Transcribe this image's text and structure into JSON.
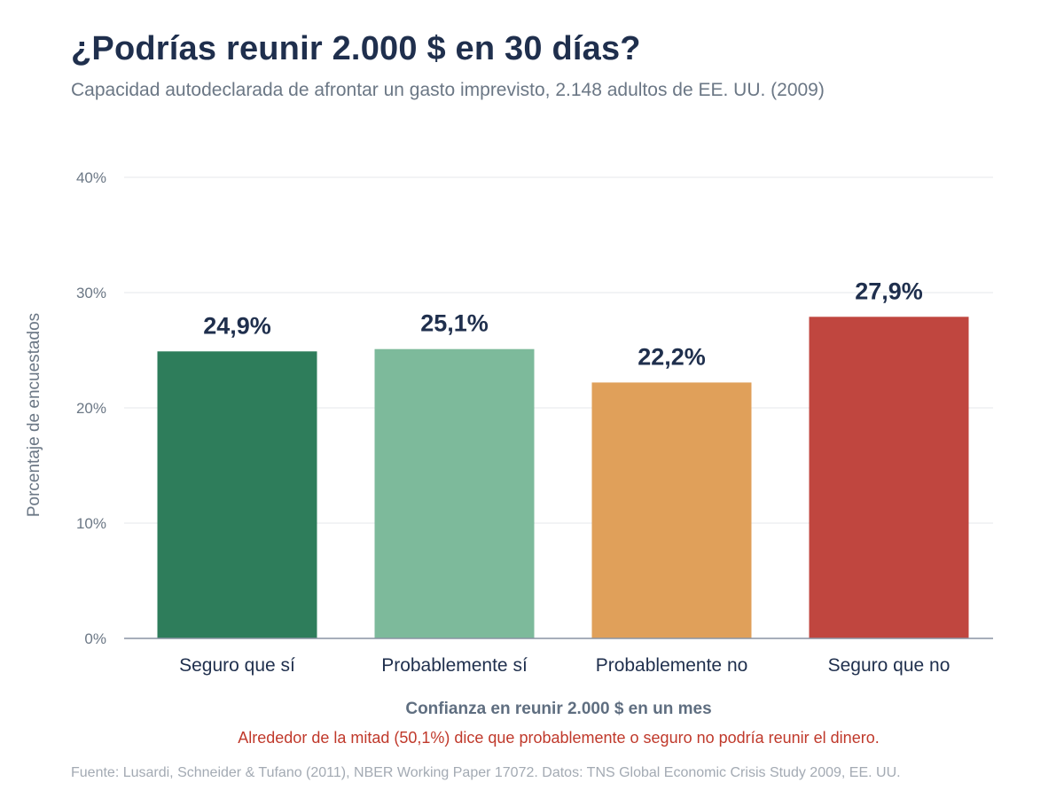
{
  "chart_data": {
    "type": "bar",
    "title": "¿Podrías reunir 2.000 $ en 30 días?",
    "subtitle": "Capacidad autodeclarada de afrontar un gasto imprevisto, 2.148 adultos de EE. UU. (2009)",
    "categories": [
      "Seguro que sí",
      "Probablemente sí",
      "Probablemente no",
      "Seguro que no"
    ],
    "values": [
      24.9,
      25.1,
      22.2,
      27.9
    ],
    "value_labels": [
      "24,9%",
      "25,1%",
      "22,2%",
      "27,9%"
    ],
    "colors": [
      "#2e7d5b",
      "#7dba9b",
      "#e0a05a",
      "#c0463f"
    ],
    "xlabel": "Confianza en reunir 2.000 $ en un mes",
    "ylabel": "Porcentaje de encuestados",
    "ylim": [
      0,
      40
    ],
    "yticks": [
      0,
      10,
      20,
      30,
      40
    ],
    "ytick_labels": [
      "0%",
      "10%",
      "20%",
      "30%",
      "40%"
    ],
    "grid": true,
    "annotation": "Alrededor de la mitad (50,1%) dice que probablemente o seguro no podría reunir el dinero.",
    "source": "Fuente: Lusardi, Schneider & Tufano (2011), NBER Working Paper 17072. Datos: TNS Global Economic Crisis Study 2009, EE. UU."
  }
}
